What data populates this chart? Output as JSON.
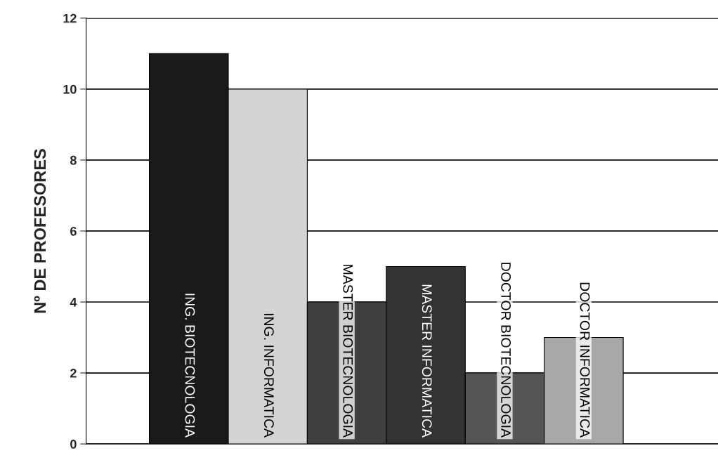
{
  "chart_data": {
    "type": "bar",
    "ylabel": "Nº DE PROFESORES",
    "categories": [
      "ING. BIOTECNOLOGIA",
      "ING. INFORMATICA",
      "MASTER BIOTECNOLOGIA",
      "MASTER INFORMATICA",
      "DOCTOR BIOTECNOLOGIA",
      "DOCTOR INFORMATICA"
    ],
    "values": [
      11,
      10,
      4,
      5,
      2,
      3
    ],
    "colors": [
      "#1a1a1a",
      "#d4d4d4",
      "#404040",
      "#333333",
      "#555555",
      "#a8a8a8"
    ],
    "ylim": [
      0,
      12
    ],
    "yticks": [
      0,
      2,
      4,
      6,
      8,
      10,
      12
    ],
    "grid": "y"
  }
}
